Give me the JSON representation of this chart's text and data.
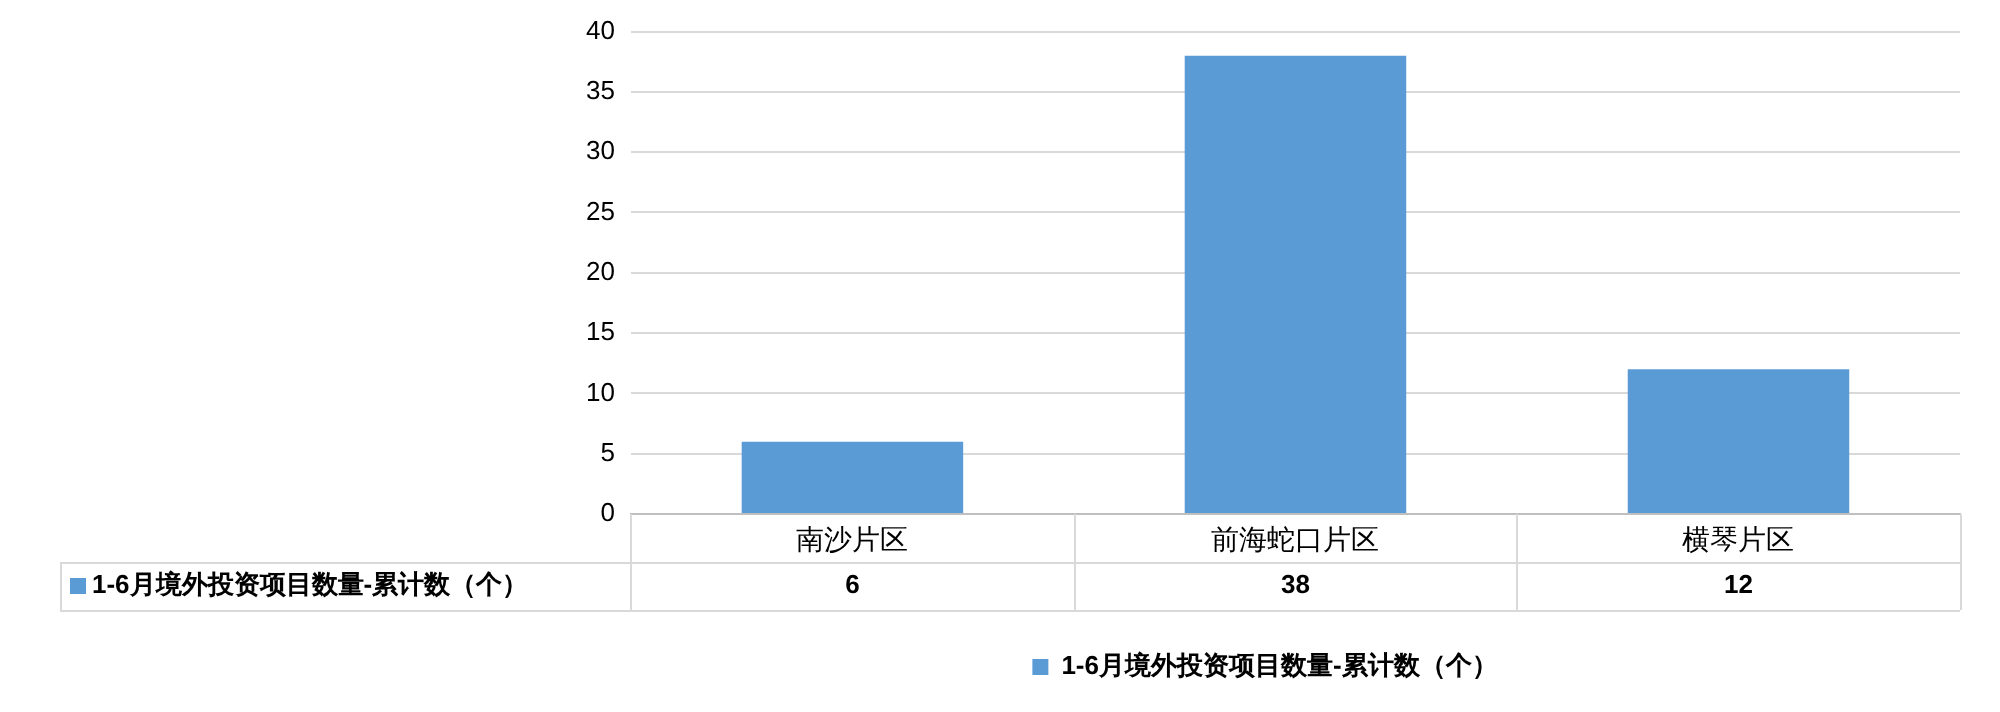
{
  "chart_data": {
    "type": "bar",
    "categories": [
      "南沙片区",
      "前海蛇口片区",
      "横琴片区"
    ],
    "series": [
      {
        "name": "1-6月境外投资项目数量-累计数（个）",
        "color": "#5b9bd5",
        "values": [
          6,
          38,
          12
        ]
      }
    ],
    "ylim": [
      0,
      40
    ],
    "yticks": [
      0,
      5,
      10,
      15,
      20,
      25,
      30,
      35,
      40
    ],
    "grid": "y",
    "legend": "bottom",
    "data_labels": true
  }
}
